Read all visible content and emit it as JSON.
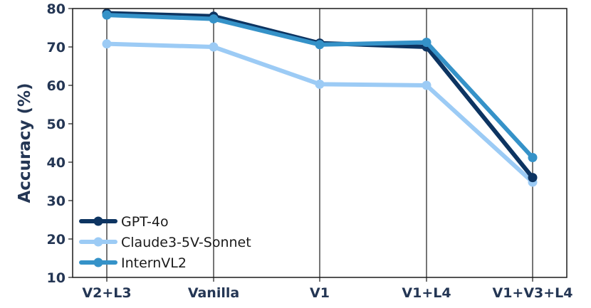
{
  "chart_data": {
    "type": "line",
    "categories": [
      "V2+L3",
      "Vanilla",
      "V1",
      "V1+L4",
      "V1+V3+L4"
    ],
    "ylabel": "Accuracy (%)",
    "xlabel": "",
    "ylim": [
      10,
      80
    ],
    "yticks": [
      10,
      20,
      30,
      40,
      50,
      60,
      70,
      80
    ],
    "grid": "vertical",
    "legend_position": "bottom-left",
    "series": [
      {
        "name": "GPT-4o",
        "color": "#0d3461",
        "values": [
          78.8,
          78.0,
          71.0,
          70.0,
          36.0
        ]
      },
      {
        "name": "Claude3-5V-Sonnet",
        "color": "#9ccbf5",
        "values": [
          70.8,
          70.0,
          60.3,
          60.0,
          34.8
        ]
      },
      {
        "name": "InternVL2",
        "color": "#3592c8",
        "values": [
          78.3,
          77.3,
          70.6,
          71.2,
          41.2
        ]
      }
    ]
  }
}
